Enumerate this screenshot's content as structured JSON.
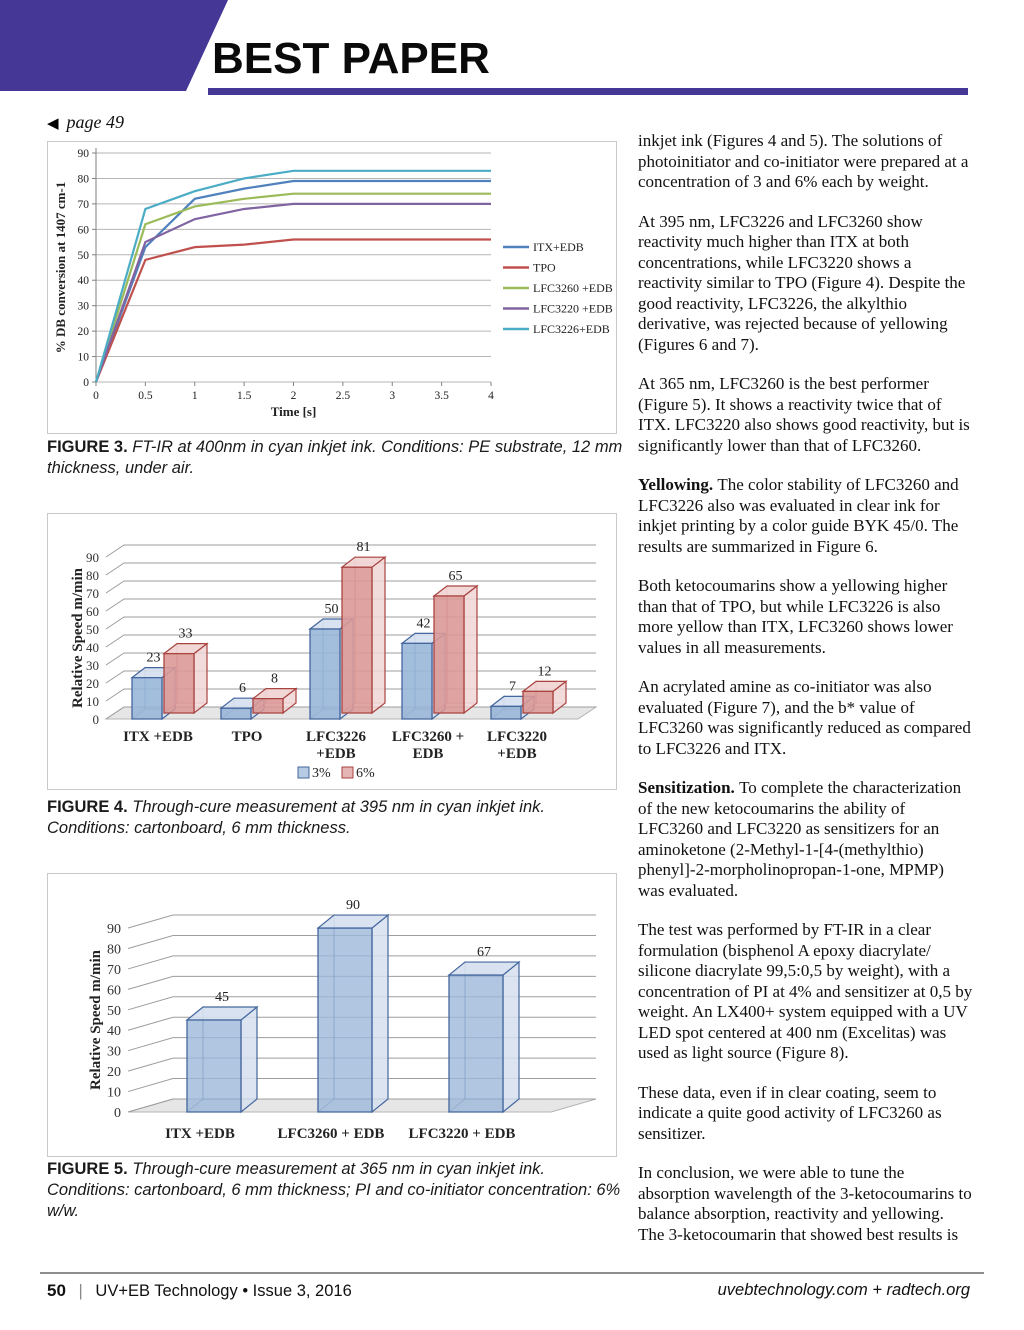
{
  "header": {
    "title": "BEST PAPER"
  },
  "nav": {
    "back_icon": "◀",
    "back_label": "page 49"
  },
  "colors": {
    "brand_purple": "#453795",
    "series_blue": "#4F81BD",
    "series_red": "#C0504D",
    "series_green": "#9BBB59",
    "series_purple": "#8064A2",
    "series_cyan": "#4BACC6",
    "bar_blue_front": "#95B3D7",
    "bar_blue_light": "#D5E0EE",
    "bar_blue_stroke": "#44679E",
    "bar_red_front": "#D99694",
    "bar_red_light": "#F0D5D4",
    "bar_red_stroke": "#A94441"
  },
  "figures": [
    {
      "caption_label": "FIGURE 3.",
      "caption_text": "FT-IR at 400nm in cyan inkjet ink. Conditions: PE substrate, 12 mm thickness, under air."
    },
    {
      "caption_label": "FIGURE 4.",
      "caption_text": "Through-cure measurement at 395 nm in cyan inkjet ink. Conditions: cartonboard, 6 mm thickness."
    },
    {
      "caption_label": "FIGURE 5.",
      "caption_text": "Through-cure measurement at 365 nm in cyan inkjet ink. Conditions: cartonboard, 6 mm thickness; PI and co-initiator concentration: 6% w/w."
    }
  ],
  "chart_data": [
    {
      "id": "figure3",
      "type": "line",
      "xlabel": "Time [s]",
      "ylabel": "% DB conversion  at 1407 cm-1",
      "xlim": [
        0,
        4
      ],
      "ylim": [
        0,
        90
      ],
      "xticks": [
        0,
        0.5,
        1,
        1.5,
        2,
        2.5,
        3,
        3.5,
        4
      ],
      "ytick_step": 10,
      "grid": true,
      "legend_position": "right",
      "x": [
        0,
        0.5,
        1,
        1.5,
        2,
        2.5,
        3,
        3.5,
        4
      ],
      "series": [
        {
          "name": "ITX+EDB",
          "color": "#4F81BD",
          "values": [
            0,
            53,
            72,
            76,
            79,
            79,
            79,
            79,
            79
          ]
        },
        {
          "name": "TPO",
          "color": "#C0504D",
          "values": [
            0,
            48,
            53,
            54,
            56,
            56,
            56,
            56,
            56
          ]
        },
        {
          "name": "LFC3260 +EDB",
          "color": "#9BBB59",
          "values": [
            0,
            62,
            69,
            72,
            74,
            74,
            74,
            74,
            74
          ]
        },
        {
          "name": "LFC3220 +EDB",
          "color": "#8064A2",
          "values": [
            0,
            55,
            64,
            68,
            70,
            70,
            70,
            70,
            70
          ]
        },
        {
          "name": "LFC3226+EDB",
          "color": "#4BACC6",
          "values": [
            0,
            68,
            75,
            80,
            83,
            83,
            83,
            83,
            83
          ]
        }
      ]
    },
    {
      "id": "figure4",
      "type": "bar",
      "ylabel": "Relative Speed m/min",
      "ylim": [
        0,
        90
      ],
      "ytick_step": 10,
      "legend_position": "bottom",
      "categories": [
        [
          "ITX +EDB"
        ],
        [
          "TPO"
        ],
        [
          "LFC3226",
          "+EDB"
        ],
        [
          "LFC3260 +",
          "EDB"
        ],
        [
          "LFC3220",
          "+EDB"
        ]
      ],
      "series": [
        {
          "name": "3%",
          "values": [
            23,
            6,
            50,
            42,
            7
          ]
        },
        {
          "name": "6%",
          "values": [
            33,
            8,
            81,
            65,
            12
          ]
        }
      ]
    },
    {
      "id": "figure5",
      "type": "bar",
      "ylabel": "Relative Speed m/min",
      "ylim": [
        0,
        90
      ],
      "ytick_step": 10,
      "categories": [
        [
          "ITX +EDB"
        ],
        [
          "LFC3260 + EDB"
        ],
        [
          "LFC3220 + EDB"
        ]
      ],
      "series": [
        {
          "name": "",
          "values": [
            45,
            90,
            67
          ]
        }
      ]
    }
  ],
  "article": {
    "paragraphs": [
      {
        "lead": "",
        "text": "inkjet ink (Figures 4 and 5). The solutions of photoinitiator and co-initiator were prepared at a concentration of 3 and 6% each by weight."
      },
      {
        "lead": "",
        "text": "At 395 nm, LFC3226 and LFC3260 show reactivity much higher than ITX at both concentrations, while LFC3220 shows a reactivity similar to TPO (Figure 4). Despite the good reactivity, LFC3226, the alkylthio derivative, was rejected because of yellowing (Figures 6 and 7)."
      },
      {
        "lead": "",
        "text": "At 365 nm, LFC3260 is the best performer (Figure 5). It shows a reactivity twice that of ITX. LFC3220 also shows good reactivity, but is significantly lower than that of LFC3260."
      },
      {
        "lead": "Yellowing.",
        "text": "The color stability of LFC3260 and LFC3226 also was evaluated in clear ink for inkjet printing by a color guide BYK 45/0. The results are summarized in Figure 6."
      },
      {
        "lead": "",
        "text": "Both ketocoumarins show a yellowing higher than that of TPO, but while LFC3226 is also more yellow than ITX, LFC3260 shows lower values in all measurements."
      },
      {
        "lead": "",
        "text": "An acrylated amine as co-initiator was also evaluated (Figure 7), and the b* value of LFC3260 was significantly reduced as compared to LFC3226 and ITX."
      },
      {
        "lead": "Sensitization.",
        "text": "To complete the characterization of the new ketocoumarins the ability of LFC3260 and LFC3220 as sensitizers for an aminoketone (2-Methyl-1-[4-(methylthio) phenyl]-2-morpholinopropan-1-one, MPMP) was evaluated."
      },
      {
        "lead": "",
        "text": "The test was performed by FT-IR in a clear formulation (bisphenol A epoxy diacrylate/ silicone diacrylate 99,5:0,5 by weight), with a concentration of PI at 4% and sensitizer at 0,5 by weight. An LX400+ system equipped with a UV LED spot centered at 400 nm (Excelitas) was used as light source (Figure 8)."
      },
      {
        "lead": "",
        "text": "These data, even if in clear coating, seem to indicate a quite good activity of LFC3260 as sensitizer."
      },
      {
        "lead": "",
        "text": "In conclusion, we were able to tune the absorption wavelength of the 3-ketocoumarins to balance absorption, reactivity and yellowing. The 3-ketocoumarin that showed best results is"
      }
    ]
  },
  "footer": {
    "page_number": "50",
    "separator": "|",
    "issue": "UV+EB Technology • Issue 3, 2016",
    "websites": "uvebtechnology.com  +  radtech.org"
  }
}
